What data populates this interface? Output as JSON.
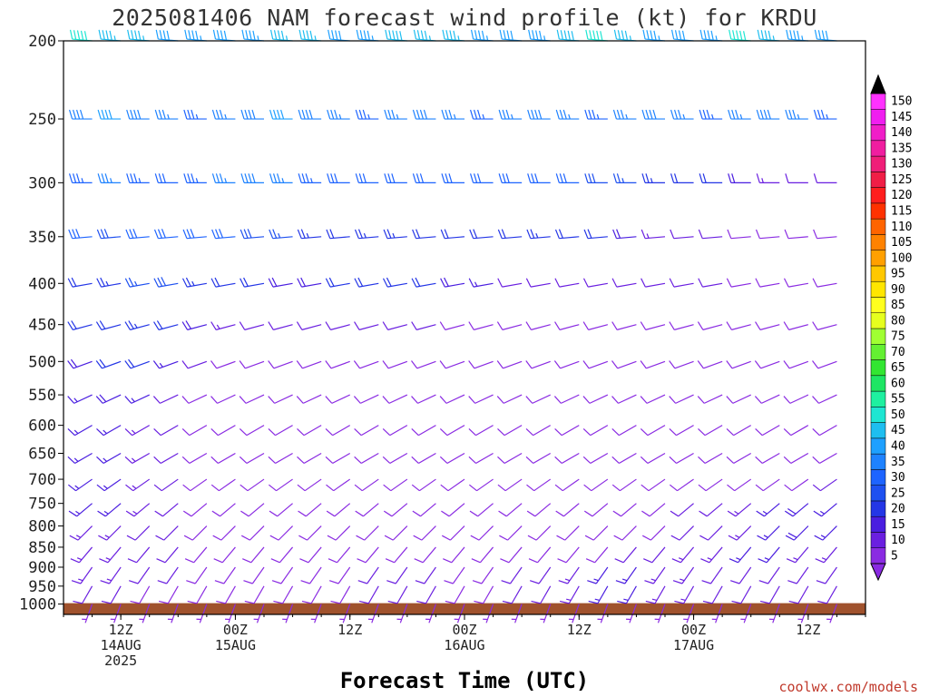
{
  "chart_data": {
    "type": "wind_barb_time_height",
    "title": "2025081406 NAM forecast wind profile (kt) for KRDU",
    "xlabel": "Forecast Time (UTC)",
    "credit": "coolwx.com/models",
    "y_axis": {
      "unit": "hPa",
      "scale": "log-pressure",
      "range": [
        1030,
        200
      ],
      "ticks": [
        200,
        250,
        300,
        350,
        400,
        450,
        500,
        550,
        600,
        650,
        700,
        750,
        800,
        850,
        900,
        950,
        1000
      ]
    },
    "x_axis": {
      "range_hours_from_init": [
        0,
        84
      ],
      "ticks": [
        {
          "hour": 6,
          "line1": "12Z",
          "line2": "14AUG",
          "line3": "2025"
        },
        {
          "hour": 18,
          "line1": "00Z",
          "line2": "15AUG",
          "line3": ""
        },
        {
          "hour": 30,
          "line1": "12Z",
          "line2": "",
          "line3": ""
        },
        {
          "hour": 42,
          "line1": "00Z",
          "line2": "16AUG",
          "line3": ""
        },
        {
          "hour": 54,
          "line1": "12Z",
          "line2": "",
          "line3": ""
        },
        {
          "hour": 66,
          "line1": "00Z",
          "line2": "17AUG",
          "line3": ""
        },
        {
          "hour": 78,
          "line1": "12Z",
          "line2": "",
          "line3": ""
        }
      ]
    },
    "colorbar": {
      "unit": "kt",
      "levels": [
        5,
        10,
        15,
        20,
        25,
        30,
        35,
        40,
        45,
        50,
        55,
        60,
        65,
        70,
        75,
        80,
        85,
        90,
        95,
        100,
        105,
        110,
        115,
        120,
        125,
        130,
        135,
        140,
        145,
        150
      ],
      "colors": [
        "#8a2be2",
        "#6a1fe0",
        "#4a1ee0",
        "#2436e6",
        "#1e50f0",
        "#1e64ff",
        "#1e82ff",
        "#1ea0ff",
        "#1ebef0",
        "#1ee6d2",
        "#1ef0a0",
        "#1ee664",
        "#32e632",
        "#64f032",
        "#a0ff32",
        "#e6ff1e",
        "#ffff1e",
        "#ffe600",
        "#ffc800",
        "#ffa000",
        "#ff8200",
        "#ff6400",
        "#ff3200",
        "#ff1e1e",
        "#f01e46",
        "#f01e78",
        "#f01ea0",
        "#f01ec8",
        "#f01ef0",
        "#ff32ff"
      ]
    },
    "barb_levels_hPa": [
      200,
      250,
      300,
      350,
      400,
      450,
      500,
      550,
      600,
      650,
      700,
      750,
      800,
      850,
      900,
      950,
      1000
    ],
    "barb_times_hours": [
      0,
      3,
      6,
      9,
      12,
      15,
      18,
      21,
      24,
      27,
      30,
      33,
      36,
      39,
      42,
      45,
      48,
      51,
      54,
      57,
      60,
      63,
      66,
      69,
      72,
      75,
      78,
      81,
      84
    ],
    "wind_profiles": [
      {
        "level": 200,
        "dir": 275,
        "speed": [
          52,
          50,
          46,
          45,
          42,
          44,
          42,
          44,
          46,
          45,
          42,
          44,
          48,
          45,
          46,
          44,
          42,
          44,
          48,
          50,
          46,
          44,
          42,
          44,
          50,
          46,
          44,
          40,
          38
        ]
      },
      {
        "level": 250,
        "dir": 270,
        "speed": [
          40,
          38,
          40,
          38,
          36,
          34,
          36,
          38,
          40,
          38,
          36,
          34,
          36,
          38,
          36,
          34,
          36,
          38,
          36,
          34,
          36,
          38,
          36,
          34,
          36,
          38,
          36,
          34,
          32
        ]
      },
      {
        "level": 300,
        "dir": 270,
        "speed": [
          36,
          34,
          36,
          34,
          32,
          34,
          36,
          38,
          36,
          34,
          32,
          30,
          32,
          30,
          30,
          32,
          30,
          32,
          30,
          28,
          26,
          24,
          22,
          20,
          18,
          14,
          12,
          10,
          10
        ]
      },
      {
        "level": 350,
        "dir": 265,
        "speed": [
          32,
          30,
          28,
          30,
          32,
          30,
          30,
          28,
          26,
          24,
          22,
          24,
          24,
          22,
          20,
          20,
          22,
          24,
          22,
          20,
          18,
          14,
          12,
          10,
          8,
          8,
          8,
          8,
          8
        ]
      },
      {
        "level": 400,
        "dir": 260,
        "speed": [
          24,
          22,
          24,
          26,
          28,
          24,
          22,
          20,
          18,
          18,
          20,
          22,
          22,
          20,
          18,
          16,
          12,
          10,
          10,
          10,
          12,
          12,
          12,
          10,
          8,
          8,
          8,
          8,
          8
        ]
      },
      {
        "level": 450,
        "dir": 255,
        "speed": [
          18,
          20,
          22,
          24,
          22,
          18,
          14,
          12,
          10,
          12,
          12,
          12,
          10,
          10,
          8,
          8,
          8,
          8,
          8,
          8,
          8,
          8,
          8,
          8,
          8,
          8,
          8,
          8,
          8
        ]
      },
      {
        "level": 500,
        "dir": 250,
        "speed": [
          16,
          18,
          20,
          20,
          16,
          12,
          8,
          8,
          8,
          8,
          8,
          8,
          8,
          8,
          8,
          8,
          8,
          8,
          8,
          8,
          8,
          8,
          8,
          8,
          8,
          8,
          8,
          8,
          8
        ]
      },
      {
        "level": 550,
        "dir": 245,
        "speed": [
          16,
          16,
          18,
          16,
          12,
          8,
          8,
          8,
          8,
          8,
          8,
          8,
          8,
          8,
          8,
          8,
          8,
          8,
          8,
          8,
          8,
          8,
          8,
          8,
          8,
          8,
          8,
          8,
          8
        ]
      },
      {
        "level": 600,
        "dir": 240,
        "speed": [
          16,
          16,
          16,
          14,
          10,
          8,
          8,
          8,
          8,
          8,
          8,
          8,
          8,
          8,
          8,
          8,
          8,
          8,
          8,
          8,
          8,
          8,
          8,
          8,
          8,
          8,
          8,
          8,
          8
        ]
      },
      {
        "level": 650,
        "dir": 240,
        "speed": [
          16,
          16,
          16,
          14,
          10,
          8,
          8,
          8,
          8,
          8,
          8,
          8,
          8,
          8,
          8,
          8,
          8,
          8,
          8,
          8,
          8,
          8,
          8,
          8,
          8,
          8,
          8,
          8,
          8
        ]
      },
      {
        "level": 700,
        "dir": 235,
        "speed": [
          16,
          16,
          16,
          14,
          10,
          8,
          8,
          8,
          8,
          8,
          8,
          8,
          8,
          8,
          8,
          8,
          8,
          8,
          8,
          8,
          8,
          8,
          8,
          8,
          8,
          8,
          8,
          10,
          12
        ]
      },
      {
        "level": 750,
        "dir": 230,
        "speed": [
          16,
          16,
          16,
          14,
          10,
          8,
          8,
          8,
          8,
          8,
          8,
          8,
          8,
          8,
          8,
          8,
          8,
          8,
          8,
          8,
          8,
          8,
          10,
          12,
          14,
          16,
          18,
          16,
          14
        ]
      },
      {
        "level": 800,
        "dir": 225,
        "speed": [
          14,
          14,
          14,
          12,
          10,
          8,
          8,
          8,
          8,
          8,
          8,
          8,
          8,
          8,
          8,
          8,
          8,
          8,
          8,
          8,
          8,
          8,
          10,
          12,
          14,
          16,
          18,
          16,
          14
        ]
      },
      {
        "level": 850,
        "dir": 220,
        "speed": [
          14,
          14,
          14,
          12,
          10,
          8,
          8,
          8,
          8,
          8,
          8,
          8,
          8,
          8,
          8,
          8,
          8,
          8,
          8,
          8,
          10,
          12,
          14,
          14,
          16,
          16,
          14,
          14,
          12
        ]
      },
      {
        "level": 900,
        "dir": 215,
        "speed": [
          12,
          14,
          14,
          12,
          10,
          8,
          8,
          8,
          8,
          8,
          8,
          10,
          10,
          10,
          8,
          8,
          10,
          12,
          14,
          16,
          16,
          14,
          14,
          12,
          12,
          12,
          12,
          10,
          10
        ]
      },
      {
        "level": 950,
        "dir": 210,
        "speed": [
          8,
          10,
          10,
          8,
          8,
          8,
          8,
          8,
          8,
          8,
          8,
          10,
          10,
          10,
          8,
          8,
          10,
          12,
          14,
          16,
          16,
          14,
          14,
          12,
          12,
          12,
          12,
          10,
          10
        ]
      },
      {
        "level": 1000,
        "dir": 200,
        "speed": [
          6,
          6,
          6,
          6,
          6,
          5,
          5,
          5,
          5,
          5,
          6,
          6,
          6,
          6,
          6,
          6,
          6,
          6,
          6,
          6,
          6,
          6,
          6,
          6,
          6,
          6,
          6,
          6,
          6
        ]
      }
    ]
  }
}
